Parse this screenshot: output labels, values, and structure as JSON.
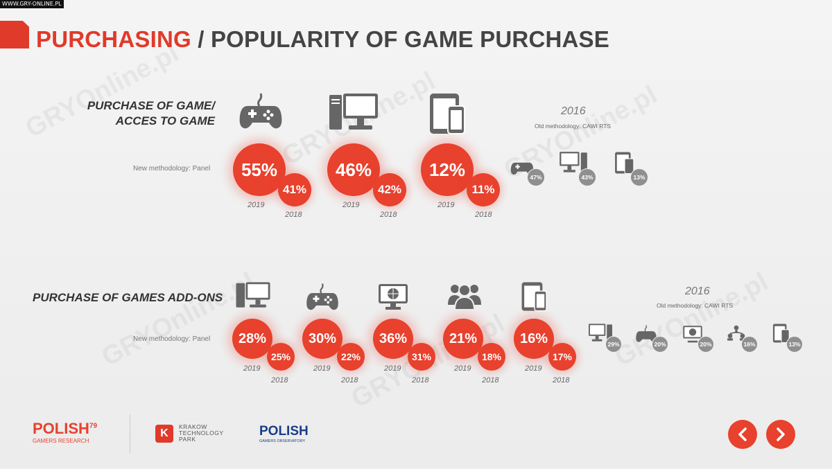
{
  "source_label": "WWW.GRY-ONLINE.PL",
  "watermark": "GRYOnline.pl",
  "header": {
    "title_highlight": "PURCHASING",
    "title_rest": " / POPULARITY OF GAME PURCHASE"
  },
  "section1": {
    "title_line1": "PURCHASE OF GAME/",
    "title_line2": "ACCES TO GAME",
    "method_label": "New methodology: Panel",
    "year_main": "2019",
    "year_prev": "2018",
    "old_year": "2016",
    "old_method": "Old methodology: CAWI RTS",
    "items": [
      {
        "icon": "gamepad-icon",
        "v2019": "55%",
        "v2018": "41%"
      },
      {
        "icon": "desktop-pc-icon",
        "v2019": "46%",
        "v2018": "42%"
      },
      {
        "icon": "tablet-phone-icon",
        "v2019": "12%",
        "v2018": "11%"
      }
    ],
    "old_items": [
      {
        "icon": "gamepad-icon",
        "value": "47%"
      },
      {
        "icon": "desktop-pc-icon",
        "value": "43%"
      },
      {
        "icon": "tablet-phone-icon",
        "value": "13%"
      }
    ]
  },
  "section2": {
    "title": "PURCHASE OF GAMES ADD-ONS",
    "method_label": "New methodology: Panel",
    "year_main": "2019",
    "year_prev": "2018",
    "old_year": "2016",
    "old_method": "Old methodology: CAWI RTS",
    "items": [
      {
        "icon": "desktop-pc-icon",
        "v2019": "28%",
        "v2018": "25%"
      },
      {
        "icon": "gamepad-icon",
        "v2019": "30%",
        "v2018": "22%"
      },
      {
        "icon": "web-globe-icon",
        "v2019": "36%",
        "v2018": "31%"
      },
      {
        "icon": "people-group-icon",
        "v2019": "21%",
        "v2018": "18%"
      },
      {
        "icon": "tablet-phone-icon",
        "v2019": "16%",
        "v2018": "17%"
      }
    ],
    "old_items": [
      {
        "icon": "desktop-pc-icon",
        "value": "29%"
      },
      {
        "icon": "gamepad-icon",
        "value": "20%"
      },
      {
        "icon": "web-globe-icon",
        "value": "20%"
      },
      {
        "icon": "people-group-icon",
        "value": "16%"
      },
      {
        "icon": "tablet-phone-icon",
        "value": "13%"
      }
    ]
  },
  "footer": {
    "logo1_main": "POLISH",
    "logo1_sup": "79",
    "logo1_sub": "GAMERS RESEARCH",
    "ktp_line1": "KRAKOW",
    "ktp_line2": "TECHNOLOGY",
    "ktp_line3": "PARK",
    "ktp_mark": "K",
    "obs_main": "POLISH",
    "obs_sub": "GAMERS OBSERVATORY"
  },
  "nav": {
    "prev": "previous",
    "next": "next"
  }
}
